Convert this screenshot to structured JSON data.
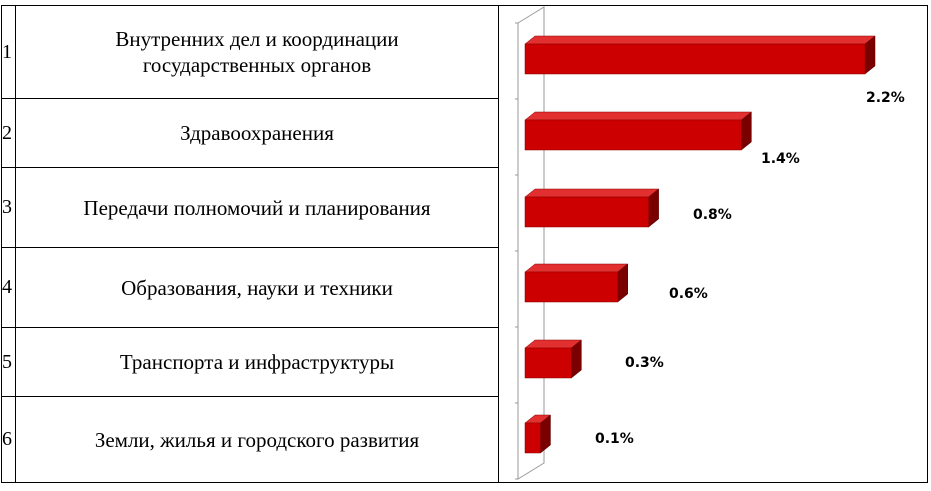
{
  "rows": [
    {
      "number": "1",
      "label_line1": "Внутренних дел и координации",
      "label_line2": "государственных органов"
    },
    {
      "number": "2",
      "label_line1": "Здравоохранения",
      "label_line2": ""
    },
    {
      "number": "3",
      "label_line1": "Передачи полномочий и планирования",
      "label_line2": ""
    },
    {
      "number": "4",
      "label_line1": "Образования, науки и техники",
      "label_line2": ""
    },
    {
      "number": "5",
      "label_line1": "Транспорта и инфраструктуры",
      "label_line2": ""
    },
    {
      "number": "6",
      "label_line1": "Земли, жилья и городского развития",
      "label_line2": ""
    }
  ],
  "chart_data": {
    "type": "bar",
    "orientation": "horizontal",
    "categories": [
      "1",
      "2",
      "3",
      "4",
      "5",
      "6"
    ],
    "values": [
      2.2,
      1.4,
      0.8,
      0.6,
      0.3,
      0.1
    ],
    "value_labels": [
      "2.2%",
      "1.4%",
      "0.8%",
      "0.6%",
      "0.3%",
      "0.1%"
    ],
    "unit": "%",
    "bar_color": "#cc0000",
    "bar_side_color": "#7a0000",
    "bar_top_color": "#e23030",
    "xlim": [
      0,
      2.2
    ],
    "grid": false,
    "legend": "none"
  }
}
